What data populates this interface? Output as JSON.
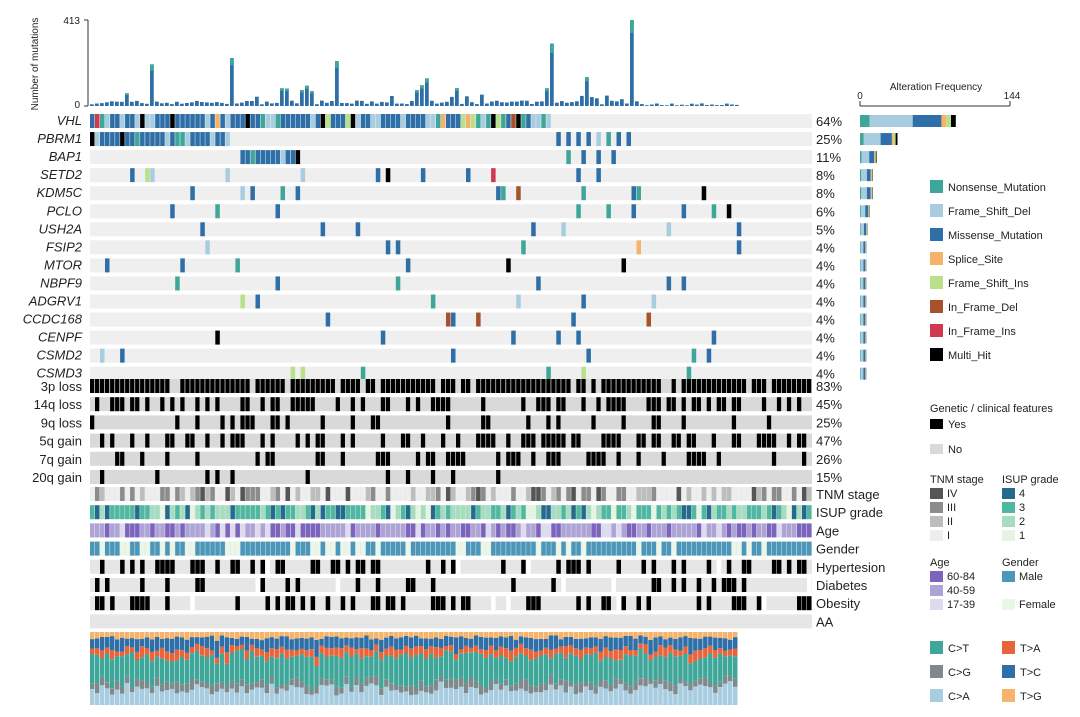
{
  "chart_data": {
    "type": "heatmap",
    "top_bar": {
      "ylabel": "Number of mutations",
      "ylim": [
        0,
        413
      ],
      "y_ticks": [
        "413",
        "0"
      ]
    },
    "alteration_frequency": {
      "title": "Alteration Frequency",
      "xlim": [
        0,
        144
      ],
      "x_ticks": [
        "0",
        "144"
      ]
    },
    "genes": [
      {
        "name": "VHL",
        "pct": "64%",
        "count": 92
      },
      {
        "name": "PBRM1",
        "pct": "25%",
        "count": 36
      },
      {
        "name": "BAP1",
        "pct": "11%",
        "count": 16
      },
      {
        "name": "SETD2",
        "pct": "8%",
        "count": 12
      },
      {
        "name": "KDM5C",
        "pct": "8%",
        "count": 12
      },
      {
        "name": "PCLO",
        "pct": "6%",
        "count": 9
      },
      {
        "name": "USH2A",
        "pct": "5%",
        "count": 7
      },
      {
        "name": "FSIP2",
        "pct": "4%",
        "count": 6
      },
      {
        "name": "MTOR",
        "pct": "4%",
        "count": 6
      },
      {
        "name": "NBPF9",
        "pct": "4%",
        "count": 6
      },
      {
        "name": "ADGRV1",
        "pct": "4%",
        "count": 6
      },
      {
        "name": "CCDC168",
        "pct": "4%",
        "count": 6
      },
      {
        "name": "CENPF",
        "pct": "4%",
        "count": 6
      },
      {
        "name": "CSMD2",
        "pct": "4%",
        "count": 6
      },
      {
        "name": "CSMD3",
        "pct": "4%",
        "count": 6
      }
    ],
    "cnv": [
      {
        "name": "3p loss",
        "pct": "83%",
        "frac": 0.83
      },
      {
        "name": "14q loss",
        "pct": "45%",
        "frac": 0.45
      },
      {
        "name": "9q loss",
        "pct": "25%",
        "frac": 0.25
      },
      {
        "name": "5q gain",
        "pct": "47%",
        "frac": 0.47
      },
      {
        "name": "7q gain",
        "pct": "26%",
        "frac": 0.26
      },
      {
        "name": "20q gain",
        "pct": "15%",
        "frac": 0.15
      }
    ],
    "clinical": [
      "TNM stage",
      "ISUP grade",
      "Age",
      "Gender",
      "Hypertesion",
      "Diabetes",
      "Obesity",
      "AA"
    ],
    "mutation_types": [
      {
        "name": "Nonsense_Mutation",
        "color": "#3fa79a"
      },
      {
        "name": "Frame_Shift_Del",
        "color": "#a9cde0"
      },
      {
        "name": "Missense_Mutation",
        "color": "#2f6fa8"
      },
      {
        "name": "Splice_Site",
        "color": "#f5b36a"
      },
      {
        "name": "Frame_Shift_Ins",
        "color": "#b9e08a"
      },
      {
        "name": "In_Frame_Del",
        "color": "#a6532b"
      },
      {
        "name": "In_Frame_Ins",
        "color": "#d0394f"
      },
      {
        "name": "Multi_Hit",
        "color": "#000000"
      }
    ],
    "feature_legend": {
      "title": "Genetic / clinical features",
      "yes": "Yes",
      "no": "No"
    },
    "tnm_legend": {
      "title": "TNM stage",
      "items": [
        {
          "label": "IV",
          "color": "#555555"
        },
        {
          "label": "III",
          "color": "#8c8c8c"
        },
        {
          "label": "II",
          "color": "#bdbdbd"
        },
        {
          "label": "I",
          "color": "#eeeeee"
        }
      ]
    },
    "isup_legend": {
      "title": "ISUP grade",
      "items": [
        {
          "label": "4",
          "color": "#236a8e"
        },
        {
          "label": "3",
          "color": "#4fb8a0"
        },
        {
          "label": "2",
          "color": "#a6dcc0"
        },
        {
          "label": "1",
          "color": "#e6f5e2"
        }
      ]
    },
    "age_legend": {
      "title": "Age",
      "items": [
        {
          "label": "60-84",
          "color": "#7b63be"
        },
        {
          "label": "40-59",
          "color": "#aea3d6"
        },
        {
          "label": "17-39",
          "color": "#dedaf0"
        }
      ]
    },
    "gender_legend": {
      "title": "Gender",
      "items": [
        {
          "label": "Male",
          "color": "#4a97ba"
        },
        {
          "label": "Female",
          "color": "#eaf6e7"
        }
      ]
    },
    "substitution_legend": [
      {
        "label": "C>T",
        "color": "#3fa79a"
      },
      {
        "label": "T>A",
        "color": "#e8643a"
      },
      {
        "label": "C>G",
        "color": "#7f8a8c"
      },
      {
        "label": "T>C",
        "color": "#2f6fa8"
      },
      {
        "label": "C>A",
        "color": "#a9cde0"
      },
      {
        "label": "T>G",
        "color": "#f7b26b"
      }
    ]
  }
}
